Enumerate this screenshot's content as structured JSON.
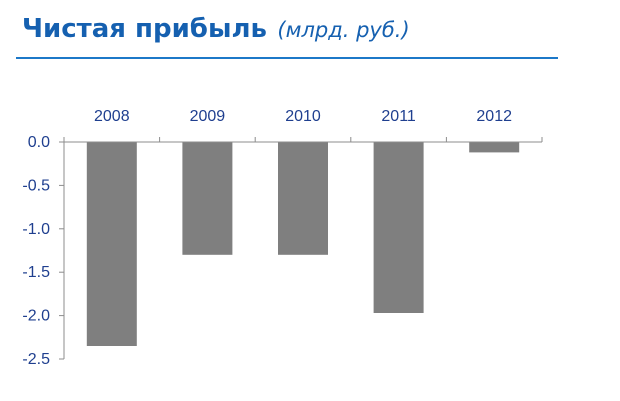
{
  "title": {
    "main": "Чистая прибыль",
    "sub": "(млрд. руб.)"
  },
  "colors": {
    "title": "#1560b0",
    "rule": "#1c78c8",
    "bar": "#7f7f7f",
    "axis": "#8c8c8c",
    "tick_text": "#1f3f8f"
  },
  "chart_data": {
    "type": "bar",
    "title": "Чистая прибыль",
    "subtitle": "(млрд. руб.)",
    "categories": [
      "2008",
      "2009",
      "2010",
      "2011",
      "2012"
    ],
    "values": [
      -2.35,
      -1.3,
      -1.3,
      -1.97,
      -0.12
    ],
    "ylim": [
      -2.5,
      0.0
    ],
    "yticks": [
      "0.0",
      "-0.5",
      "-1.0",
      "-1.5",
      "-2.0",
      "-2.5"
    ],
    "category_axis_position": "top",
    "grid": false,
    "legend": "none"
  }
}
